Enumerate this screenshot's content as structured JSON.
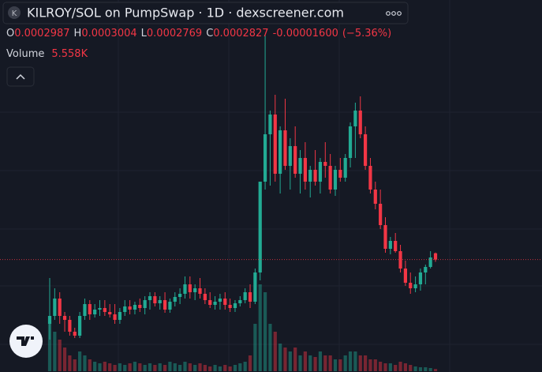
{
  "header": {
    "logo": "K",
    "title": "KILROY/SOL on PumpSwap · 1D · dexscreener.com",
    "ohlc_labels": [
      "O",
      "H",
      "L",
      "C"
    ],
    "change": "-0.00001600",
    "change_pct": "(−5.36%)",
    "volume_label": "Volume"
  },
  "chart_data": {
    "type": "candlestick",
    "up_color": "#22ab94",
    "down_color": "#f23645",
    "ylim": [
      0,
      0.00094
    ],
    "vlim": [
      0,
      940000
    ],
    "open": [
      0.00012,
      0.00014,
      0.000184,
      0.00014,
      0.00013,
      0.0001,
      9e-05,
      0.00014,
      0.00017,
      0.000144,
      0.000156,
      0.00016,
      0.00015,
      0.000144,
      0.00013,
      0.00015,
      0.000164,
      0.000156,
      0.000168,
      0.00016,
      0.00018,
      0.00019,
      0.000172,
      0.00018,
      0.000156,
      0.000176,
      0.000188,
      0.000196,
      0.00022,
      0.0002,
      0.00021,
      0.000196,
      0.00018,
      0.000168,
      0.000176,
      0.000184,
      0.000168,
      0.00016,
      0.000172,
      0.00018,
      0.0002,
      0.000176,
      0.00025,
      0.00048,
      0.0006,
      0.00065,
      0.0005,
      0.00061,
      0.00052,
      0.00057,
      0.0005,
      0.00054,
      0.00048,
      0.00051,
      0.00048,
      0.00053,
      0.00052,
      0.00046,
      0.00051,
      0.00049,
      0.00054,
      0.00062,
      0.00066,
      0.0006,
      0.00052,
      0.00046,
      0.000424,
      0.00037,
      0.00031,
      0.00033,
      0.000304,
      0.00026,
      0.000224,
      0.00021,
      0.00022,
      0.00025,
      0.000264,
      0.0002987
    ],
    "high": [
      0.000236,
      0.00021,
      0.0002,
      0.00015,
      0.00014,
      0.00011,
      0.00015,
      0.000184,
      0.00018,
      0.00017,
      0.00018,
      0.00018,
      0.00017,
      0.00017,
      0.00016,
      0.00018,
      0.00018,
      0.000176,
      0.000184,
      0.00019,
      0.0002,
      0.0002,
      0.00019,
      0.0002,
      0.000184,
      0.0002,
      0.00021,
      0.00024,
      0.00024,
      0.00022,
      0.000236,
      0.00021,
      0.0002,
      0.00019,
      0.000196,
      0.0002,
      0.000184,
      0.00018,
      0.00019,
      0.00021,
      0.00022,
      0.00026,
      0.00048,
      0.00085,
      0.00066,
      0.0007,
      0.00062,
      0.00069,
      0.00059,
      0.00062,
      0.00056,
      0.00058,
      0.00052,
      0.00056,
      0.00054,
      0.00058,
      0.00055,
      0.00052,
      0.00054,
      0.00055,
      0.00063,
      0.00068,
      0.000696,
      0.00062,
      0.00054,
      0.00048,
      0.00046,
      0.00039,
      0.00034,
      0.00035,
      0.00032,
      0.00028,
      0.00025,
      0.00024,
      0.00026,
      0.00027,
      0.000304,
      0.0003004
    ],
    "low": [
      8e-05,
      0.00013,
      0.00012,
      0.0001,
      9e-05,
      8.4e-05,
      8.4e-05,
      0.00013,
      0.00013,
      0.000136,
      0.00014,
      0.00014,
      0.000136,
      0.00012,
      0.00012,
      0.00014,
      0.000144,
      0.000144,
      0.00015,
      0.000144,
      0.000156,
      0.000164,
      0.000156,
      0.000148,
      0.000148,
      0.000164,
      0.00017,
      0.000184,
      0.000184,
      0.00018,
      0.000184,
      0.00017,
      0.00016,
      0.000156,
      0.000156,
      0.000156,
      0.00015,
      0.00015,
      0.000164,
      0.000172,
      0.00016,
      0.00017,
      0.00023,
      0.00046,
      0.00047,
      0.00048,
      0.00045,
      0.00051,
      0.00046,
      0.00049,
      0.00045,
      0.00046,
      0.00044,
      0.00047,
      0.00045,
      0.00049,
      0.00045,
      0.000444,
      0.00048,
      0.00048,
      0.000516,
      0.00054,
      0.00059,
      0.00051,
      0.00045,
      0.00041,
      0.00036,
      0.0003,
      0.000296,
      0.0003,
      0.00025,
      0.000216,
      0.000196,
      0.0002,
      0.000204,
      0.00022,
      0.00026,
      0.0002769
    ],
    "close": [
      0.00014,
      0.000184,
      0.00014,
      0.00013,
      0.0001,
      9e-05,
      0.00014,
      0.00017,
      0.000144,
      0.000156,
      0.00016,
      0.00015,
      0.000144,
      0.00013,
      0.00015,
      0.000164,
      0.000156,
      0.000168,
      0.00016,
      0.00018,
      0.00019,
      0.000172,
      0.00018,
      0.000156,
      0.000176,
      0.000188,
      0.000196,
      0.00022,
      0.0002,
      0.00021,
      0.000196,
      0.00018,
      0.000168,
      0.000176,
      0.000184,
      0.000168,
      0.00016,
      0.000172,
      0.00018,
      0.0002,
      0.000176,
      0.00025,
      0.00048,
      0.0006,
      0.00065,
      0.0005,
      0.00061,
      0.00052,
      0.00057,
      0.0005,
      0.00054,
      0.00048,
      0.00051,
      0.00048,
      0.00053,
      0.00052,
      0.00046,
      0.00051,
      0.00049,
      0.00054,
      0.00062,
      0.00066,
      0.0006,
      0.00052,
      0.00046,
      0.000424,
      0.00037,
      0.00031,
      0.00033,
      0.000304,
      0.00026,
      0.000224,
      0.00021,
      0.00022,
      0.00025,
      0.000264,
      0.000288,
      0.0002827
    ],
    "volume": [
      120000,
      100000,
      80000,
      60000,
      40000,
      30000,
      50000,
      40000,
      30000,
      24000,
      20000,
      24000,
      20000,
      16000,
      20000,
      16000,
      20000,
      24000,
      20000,
      16000,
      20000,
      16000,
      20000,
      16000,
      24000,
      20000,
      16000,
      24000,
      20000,
      16000,
      20000,
      16000,
      12000,
      16000,
      12000,
      16000,
      12000,
      16000,
      20000,
      24000,
      40000,
      120000,
      220000,
      200000,
      120000,
      100000,
      70000,
      60000,
      50000,
      60000,
      40000,
      50000,
      40000,
      36000,
      50000,
      40000,
      40000,
      30000,
      30000,
      40000,
      50000,
      50000,
      40000,
      40000,
      30000,
      30000,
      24000,
      20000,
      20000,
      16000,
      24000,
      20000,
      16000,
      12000,
      10000,
      10000,
      8000,
      5558
    ],
    "last_volume_label": "5.558K"
  }
}
